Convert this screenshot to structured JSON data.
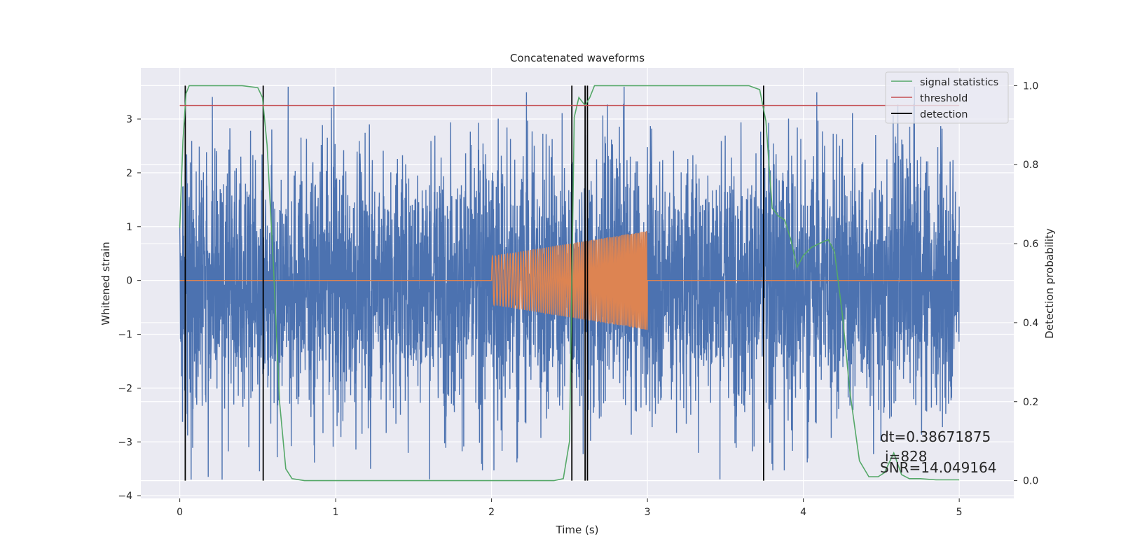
{
  "chart_data": {
    "type": "line",
    "title": "Concatenated waveforms",
    "xlabel": "Time (s)",
    "ylabel_left": "Whitened strain",
    "ylabel_right": "Detection probability",
    "xlim": [
      -0.25,
      5.35
    ],
    "ylim_left": [
      -4.05,
      3.95
    ],
    "ylim_right": [
      -0.045,
      1.045
    ],
    "x_ticks": [
      0,
      1,
      2,
      3,
      4,
      5
    ],
    "y_left_ticks": [
      -4,
      -3,
      -2,
      -1,
      0,
      1,
      2,
      3
    ],
    "y_right_ticks": [
      0.0,
      0.2,
      0.4,
      0.6,
      0.8,
      1.0
    ],
    "x_tick_labels": [
      "0",
      "1",
      "2",
      "3",
      "4",
      "5"
    ],
    "y_left_tick_labels": [
      "−4",
      "−3",
      "−2",
      "−1",
      "0",
      "1",
      "2",
      "3"
    ],
    "y_right_tick_labels": [
      "0.0",
      "0.2",
      "0.4",
      "0.6",
      "0.8",
      "1.0"
    ],
    "grid": true,
    "legend_position": "top-right",
    "legend": [
      {
        "label": "signal statistics",
        "color": "#55a868"
      },
      {
        "label": "threshold",
        "color": "#c44e52"
      },
      {
        "label": "detection",
        "color": "#000000"
      }
    ],
    "strain_noise": {
      "x_range": [
        0,
        5
      ],
      "typical_amplitude": 1.5,
      "max_spike": 3.6,
      "min_spike": -3.7,
      "color": "#4c72b0"
    },
    "injected_signal": {
      "x_range": [
        2,
        3
      ],
      "start_amplitude": 0.45,
      "end_amplitude": 0.92,
      "baseline": 0,
      "color": "#dd8452"
    },
    "signal_statistics": {
      "color": "#55a868",
      "x": [
        0,
        0.02,
        0.04,
        0.06,
        0.1,
        0.2,
        0.4,
        0.5,
        0.53,
        0.56,
        0.6,
        0.64,
        0.68,
        0.72,
        0.8,
        1.0,
        1.5,
        2.0,
        2.4,
        2.46,
        2.5,
        2.53,
        2.56,
        2.6,
        2.63,
        2.66,
        2.7,
        2.8,
        3.0,
        3.5,
        3.65,
        3.72,
        3.76,
        3.8,
        3.84,
        3.88,
        3.92,
        3.96,
        4.0,
        4.05,
        4.1,
        4.16,
        4.2,
        4.25,
        4.3,
        4.36,
        4.42,
        4.48,
        4.52,
        4.58,
        4.63,
        4.68,
        4.75,
        4.85,
        5.0
      ],
      "y": [
        0.64,
        0.86,
        0.98,
        1.0,
        1.0,
        1.0,
        1.0,
        0.995,
        0.97,
        0.85,
        0.55,
        0.2,
        0.03,
        0.005,
        0.0,
        0.0,
        0.0,
        0.0,
        0.0,
        0.005,
        0.1,
        0.92,
        0.97,
        0.95,
        0.97,
        1.0,
        1.0,
        1.0,
        1.0,
        1.0,
        1.0,
        0.99,
        0.91,
        0.69,
        0.67,
        0.66,
        0.61,
        0.54,
        0.57,
        0.59,
        0.6,
        0.61,
        0.58,
        0.42,
        0.22,
        0.05,
        0.01,
        0.01,
        0.02,
        0.07,
        0.015,
        0.005,
        0.005,
        0.002,
        0.002
      ]
    },
    "threshold": {
      "value": 0.95,
      "x_range": [
        0,
        5
      ],
      "color": "#c44e52"
    },
    "detections": {
      "x": [
        0.035,
        0.535,
        2.515,
        2.6,
        2.615,
        3.745
      ],
      "y_range": [
        0.0,
        1.0
      ],
      "color": "#000000"
    },
    "annotations": [
      "dt=0.38671875",
      "i=828",
      "SNR=14.049164"
    ]
  }
}
